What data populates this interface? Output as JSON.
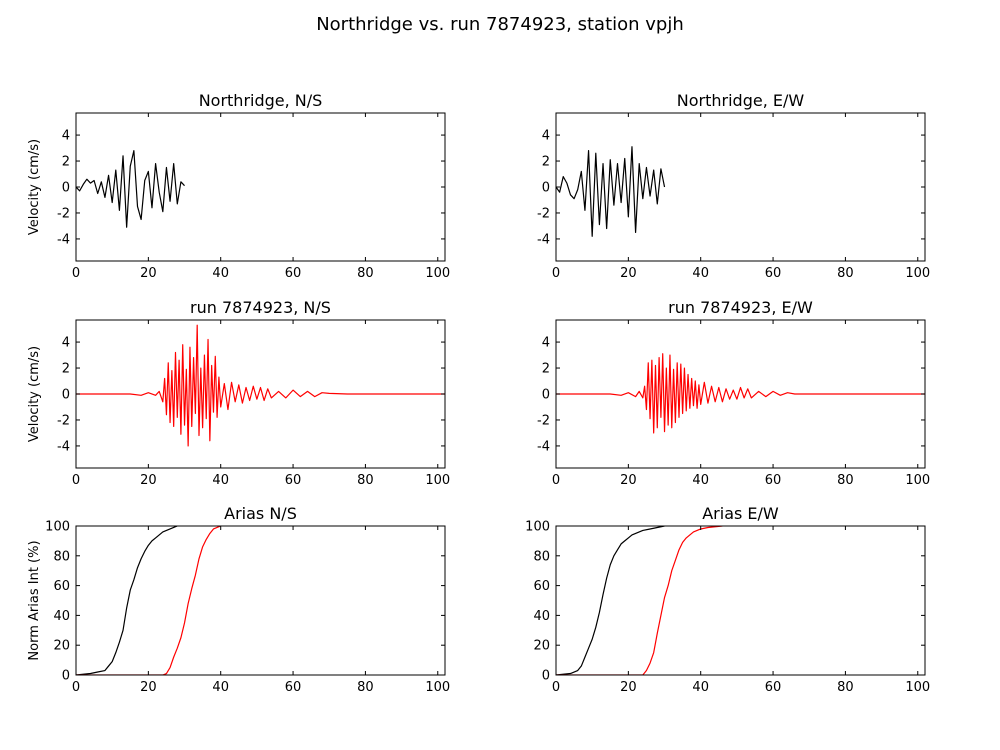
{
  "figure": {
    "title": "Northridge vs. run 7874923, station vpjh",
    "colors": {
      "data": "#000000",
      "simulation": "#ff0000"
    }
  },
  "chart_data": [
    {
      "id": "nr-ns",
      "type": "line",
      "title": "Northridge, N/S",
      "ylabel": "Velocity (cm/s)",
      "xlabel": "",
      "xlim": [
        0,
        102
      ],
      "ylim": [
        -5.7,
        5.7
      ],
      "xticks": [
        0,
        20,
        40,
        60,
        80,
        100
      ],
      "yticks": [
        -4,
        -2,
        0,
        2,
        4
      ],
      "grid": false,
      "series": [
        {
          "color": "#000000",
          "x": [
            0,
            1,
            2,
            3,
            4,
            5,
            6,
            7,
            8,
            9,
            10,
            11,
            12,
            13,
            14,
            15,
            16,
            17,
            18,
            19,
            20,
            21,
            22,
            23,
            24,
            25,
            26,
            27,
            28,
            29,
            30
          ],
          "y": [
            0,
            -0.3,
            0.2,
            0.6,
            0.3,
            0.5,
            -0.5,
            0.4,
            -0.8,
            0.9,
            -1.2,
            1.3,
            -1.8,
            2.4,
            -3.1,
            1.6,
            2.8,
            -1.5,
            -2.5,
            0.5,
            1.2,
            -1.6,
            1.8,
            -0.4,
            -1.9,
            1.5,
            -1.1,
            1.8,
            -1.3,
            0.4,
            0.1
          ]
        }
      ]
    },
    {
      "id": "nr-ew",
      "type": "line",
      "title": "Northridge, E/W",
      "ylabel": "",
      "xlabel": "",
      "xlim": [
        0,
        102
      ],
      "ylim": [
        -5.7,
        5.7
      ],
      "xticks": [
        0,
        20,
        40,
        60,
        80,
        100
      ],
      "yticks": [
        -4,
        -2,
        0,
        2,
        4
      ],
      "grid": false,
      "series": [
        {
          "color": "#000000",
          "x": [
            0,
            1,
            2,
            3,
            4,
            5,
            6,
            7,
            8,
            9,
            10,
            11,
            12,
            13,
            14,
            15,
            16,
            17,
            18,
            19,
            20,
            21,
            22,
            23,
            24,
            25,
            26,
            27,
            28,
            29,
            30
          ],
          "y": [
            0,
            -0.4,
            0.8,
            0.3,
            -0.6,
            -0.9,
            -0.2,
            1.2,
            -1.8,
            2.8,
            -3.8,
            2.6,
            -2.9,
            1.8,
            -3.2,
            2.1,
            -1.4,
            1.8,
            -1.2,
            2.2,
            -2.3,
            3.1,
            -3.5,
            1.8,
            -0.9,
            1.5,
            -0.7,
            1.3,
            -1.3,
            1.4,
            0
          ]
        }
      ]
    },
    {
      "id": "run-ns",
      "type": "line",
      "title": "run 7874923, N/S",
      "ylabel": "Velocity (cm/s)",
      "xlabel": "",
      "xlim": [
        0,
        102
      ],
      "ylim": [
        -5.7,
        5.7
      ],
      "xticks": [
        0,
        20,
        40,
        60,
        80,
        100
      ],
      "yticks": [
        -4,
        -2,
        0,
        2,
        4
      ],
      "grid": false,
      "series": [
        {
          "color": "#ff0000",
          "x": [
            0,
            15,
            18,
            20,
            22,
            23,
            24,
            24.5,
            25,
            25.5,
            26,
            26.5,
            27,
            27.5,
            28,
            28.5,
            29,
            29.5,
            30,
            30.5,
            31,
            31.5,
            32,
            32.5,
            33,
            33.5,
            34,
            34.5,
            35,
            35.5,
            36,
            36.5,
            37,
            37.5,
            38,
            38.5,
            39,
            39.5,
            40,
            41,
            42,
            43,
            44,
            45,
            46,
            47,
            48,
            49,
            50,
            51,
            52,
            53,
            54,
            56,
            58,
            60,
            62,
            64,
            66,
            68,
            70,
            75,
            80,
            90,
            102
          ],
          "y": [
            0,
            0,
            -0.1,
            0.1,
            -0.1,
            0.2,
            -0.6,
            1.2,
            -1.6,
            2.4,
            -2.2,
            1.8,
            -2.5,
            3.2,
            -1.8,
            2.6,
            -3.1,
            3.8,
            -2.4,
            1.9,
            -4.0,
            3.6,
            -2.5,
            2.8,
            -1.5,
            5.3,
            -3.2,
            2.0,
            -2.6,
            3.0,
            -1.9,
            4.2,
            -3.6,
            2.2,
            -1.4,
            2.9,
            -1.8,
            1.3,
            -1.0,
            0.8,
            -1.2,
            0.9,
            -0.6,
            0.7,
            -0.7,
            0.5,
            -0.5,
            0.6,
            -0.4,
            0.5,
            -0.5,
            0.4,
            -0.3,
            0.2,
            -0.3,
            0.3,
            -0.2,
            0.2,
            -0.2,
            0.1,
            0.05,
            0,
            0,
            0,
            0
          ]
        }
      ]
    },
    {
      "id": "run-ew",
      "type": "line",
      "title": "run 7874923, E/W",
      "ylabel": "",
      "xlabel": "",
      "xlim": [
        0,
        102
      ],
      "ylim": [
        -5.7,
        5.7
      ],
      "xticks": [
        0,
        20,
        40,
        60,
        80,
        100
      ],
      "yticks": [
        -4,
        -2,
        0,
        2,
        4
      ],
      "grid": false,
      "series": [
        {
          "color": "#ff0000",
          "x": [
            0,
            15,
            18,
            20,
            22,
            23,
            24,
            24.5,
            25,
            25.5,
            26,
            26.5,
            27,
            27.5,
            28,
            28.5,
            29,
            29.5,
            30,
            30.5,
            31,
            31.5,
            32,
            32.5,
            33,
            33.5,
            34,
            34.5,
            35,
            35.5,
            36,
            36.5,
            37,
            37.5,
            38,
            38.5,
            39,
            39.5,
            40,
            41,
            42,
            43,
            44,
            45,
            46,
            47,
            48,
            49,
            50,
            51,
            52,
            53,
            54,
            56,
            58,
            60,
            62,
            64,
            66,
            68,
            70,
            75,
            80,
            90,
            102
          ],
          "y": [
            0,
            0,
            -0.1,
            0.1,
            -0.2,
            0.2,
            -0.3,
            0.6,
            -1.2,
            2.4,
            -1.9,
            2.6,
            -3.0,
            2.2,
            -2.6,
            2.8,
            -1.8,
            3.1,
            -2.9,
            2.0,
            -2.4,
            3.0,
            -2.6,
            1.9,
            -2.2,
            2.4,
            -1.8,
            2.3,
            -1.5,
            2.0,
            -1.3,
            1.5,
            -1.1,
            1.2,
            -0.9,
            1.0,
            -1.1,
            0.7,
            -0.8,
            0.9,
            -0.7,
            0.6,
            -0.6,
            0.5,
            -0.6,
            0.4,
            -0.4,
            0.3,
            -0.4,
            0.5,
            -0.3,
            0.4,
            -0.3,
            0.2,
            -0.2,
            0.2,
            -0.1,
            0.1,
            0,
            0,
            0,
            0,
            0,
            0,
            0
          ]
        }
      ]
    },
    {
      "id": "arias-ns",
      "type": "line",
      "title": "Arias N/S",
      "ylabel": "Norm Arias Int (%)",
      "xlabel": "",
      "xlim": [
        0,
        102
      ],
      "ylim": [
        0,
        100
      ],
      "xticks": [
        0,
        20,
        40,
        60,
        80,
        100
      ],
      "yticks": [
        0,
        20,
        40,
        60,
        80,
        100
      ],
      "grid": false,
      "series": [
        {
          "color": "#000000",
          "x": [
            0,
            2,
            4,
            6,
            8,
            9,
            10,
            11,
            12,
            13,
            14,
            15,
            16,
            17,
            18,
            19,
            20,
            21,
            22,
            23,
            24,
            25,
            26,
            27,
            28
          ],
          "y": [
            0,
            0.5,
            1,
            2,
            3,
            6,
            9,
            15,
            22,
            30,
            45,
            57,
            64,
            72,
            78,
            83,
            87,
            90,
            92,
            94,
            96,
            97,
            98,
            99,
            100
          ]
        },
        {
          "color": "#ff0000",
          "x": [
            0,
            24,
            25,
            26,
            27,
            28,
            29,
            30,
            31,
            32,
            33,
            34,
            35,
            36,
            37,
            38,
            39,
            40
          ],
          "y": [
            0,
            0,
            1,
            5,
            12,
            18,
            25,
            35,
            48,
            58,
            67,
            78,
            86,
            91,
            95,
            98,
            99,
            100
          ]
        }
      ]
    },
    {
      "id": "arias-ew",
      "type": "line",
      "title": "Arias E/W",
      "ylabel": "",
      "xlabel": "",
      "xlim": [
        0,
        102
      ],
      "ylim": [
        0,
        100
      ],
      "xticks": [
        0,
        20,
        40,
        60,
        80,
        100
      ],
      "yticks": [
        0,
        20,
        40,
        60,
        80,
        100
      ],
      "grid": false,
      "series": [
        {
          "color": "#000000",
          "x": [
            0,
            2,
            4,
            6,
            7,
            8,
            9,
            10,
            11,
            12,
            13,
            14,
            15,
            16,
            17,
            18,
            19,
            20,
            21,
            22,
            24,
            26,
            28,
            30
          ],
          "y": [
            0,
            0.5,
            1,
            3,
            6,
            12,
            18,
            24,
            32,
            42,
            54,
            65,
            74,
            80,
            84,
            88,
            90,
            92,
            94,
            95,
            97,
            98,
            99,
            100
          ]
        },
        {
          "color": "#ff0000",
          "x": [
            0,
            24,
            25,
            26,
            27,
            28,
            29,
            30,
            31,
            32,
            33,
            34,
            35,
            36,
            37,
            38,
            40,
            42,
            44,
            46
          ],
          "y": [
            0,
            0,
            3,
            8,
            15,
            28,
            40,
            52,
            60,
            70,
            77,
            84,
            89,
            92,
            94,
            96,
            98,
            99,
            99.5,
            100
          ]
        }
      ]
    }
  ]
}
